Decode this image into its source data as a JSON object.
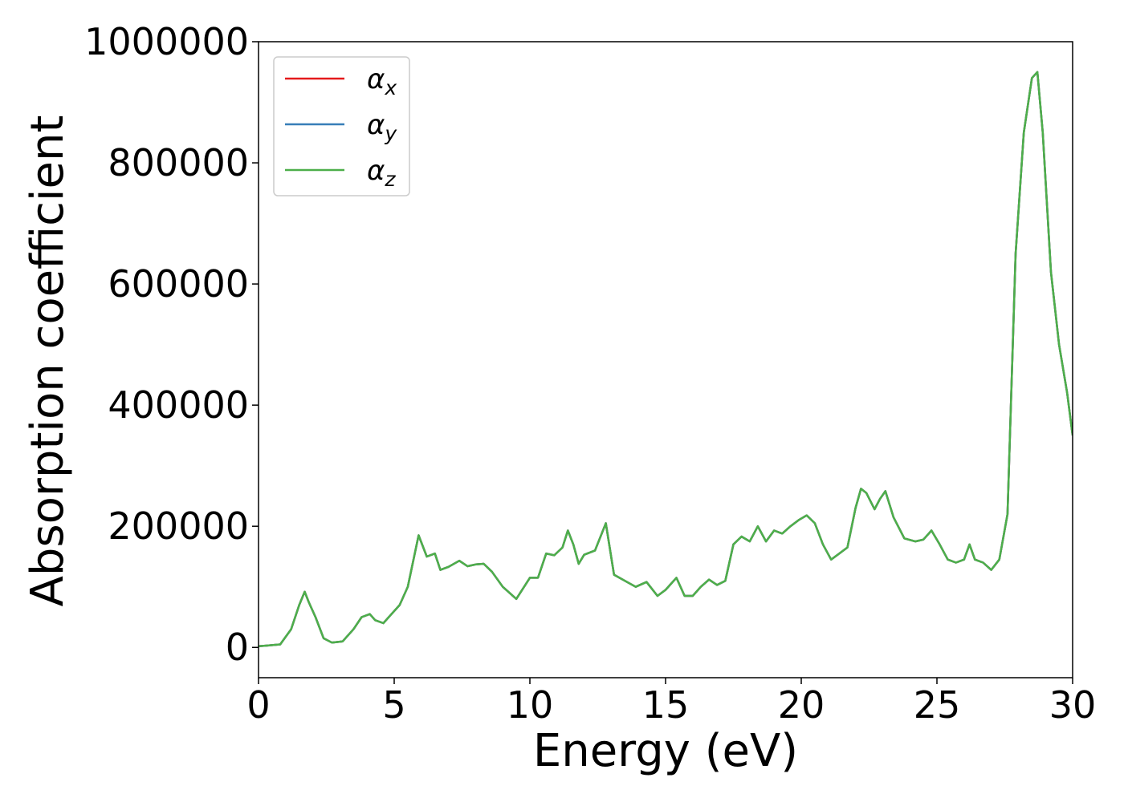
{
  "chart_data": {
    "type": "line",
    "title": "",
    "xlabel": "Energy (eV)",
    "ylabel": "Absorption coefficient",
    "xlim": [
      0,
      30
    ],
    "ylim": [
      -50000,
      1000000
    ],
    "xticks": [
      0,
      5,
      10,
      15,
      20,
      25,
      30
    ],
    "yticks": [
      0,
      200000,
      400000,
      600000,
      800000,
      1000000
    ],
    "grid": false,
    "legend_position": "top-left",
    "x": [
      0,
      0.3,
      0.8,
      1.2,
      1.5,
      1.7,
      1.85,
      2.1,
      2.4,
      2.7,
      3.1,
      3.5,
      3.8,
      4.1,
      4.3,
      4.6,
      4.9,
      5.2,
      5.5,
      5.9,
      6.2,
      6.5,
      6.7,
      7.0,
      7.4,
      7.7,
      8.0,
      8.3,
      8.6,
      9.0,
      9.5,
      10.0,
      10.3,
      10.6,
      10.9,
      11.2,
      11.4,
      11.6,
      11.8,
      12.0,
      12.4,
      12.8,
      13.1,
      13.5,
      13.9,
      14.3,
      14.7,
      15.0,
      15.4,
      15.7,
      16.0,
      16.3,
      16.6,
      16.9,
      17.2,
      17.5,
      17.8,
      18.1,
      18.4,
      18.7,
      19.0,
      19.3,
      19.6,
      19.9,
      20.2,
      20.5,
      20.8,
      21.1,
      21.4,
      21.7,
      22.0,
      22.2,
      22.4,
      22.7,
      22.9,
      23.1,
      23.4,
      23.8,
      24.2,
      24.5,
      24.8,
      25.1,
      25.4,
      25.7,
      26.0,
      26.2,
      26.4,
      26.7,
      27.0,
      27.3,
      27.6,
      27.9,
      28.2,
      28.5,
      28.7,
      28.9,
      29.2,
      29.5,
      29.8,
      30.0
    ],
    "series": [
      {
        "name": "α_x",
        "color": "#e41a1c",
        "values": [
          2000,
          3000,
          5000,
          30000,
          70000,
          92000,
          75000,
          50000,
          15000,
          8000,
          10000,
          30000,
          50000,
          55000,
          45000,
          40000,
          55000,
          70000,
          100000,
          185000,
          150000,
          155000,
          128000,
          133000,
          143000,
          134000,
          137000,
          138000,
          125000,
          100000,
          80000,
          115000,
          115000,
          155000,
          152000,
          165000,
          193000,
          170000,
          138000,
          153000,
          160000,
          205000,
          120000,
          110000,
          100000,
          108000,
          85000,
          95000,
          115000,
          85000,
          85000,
          100000,
          112000,
          103000,
          110000,
          170000,
          183000,
          175000,
          200000,
          175000,
          193000,
          188000,
          200000,
          210000,
          218000,
          205000,
          170000,
          145000,
          155000,
          165000,
          230000,
          262000,
          255000,
          228000,
          245000,
          258000,
          215000,
          180000,
          175000,
          178000,
          193000,
          170000,
          145000,
          140000,
          145000,
          170000,
          145000,
          140000,
          128000,
          145000,
          220000,
          650000,
          850000,
          940000,
          950000,
          850000,
          620000,
          500000,
          420000,
          350000
        ]
      },
      {
        "name": "α_y",
        "color": "#377eb8",
        "values": [
          2000,
          3000,
          5000,
          30000,
          70000,
          92000,
          75000,
          50000,
          15000,
          8000,
          10000,
          30000,
          50000,
          55000,
          45000,
          40000,
          55000,
          70000,
          100000,
          185000,
          150000,
          155000,
          128000,
          133000,
          143000,
          134000,
          137000,
          138000,
          125000,
          100000,
          80000,
          115000,
          115000,
          155000,
          152000,
          165000,
          193000,
          170000,
          138000,
          153000,
          160000,
          205000,
          120000,
          110000,
          100000,
          108000,
          85000,
          95000,
          115000,
          85000,
          85000,
          100000,
          112000,
          103000,
          110000,
          170000,
          183000,
          175000,
          200000,
          175000,
          193000,
          188000,
          200000,
          210000,
          218000,
          205000,
          170000,
          145000,
          155000,
          165000,
          230000,
          262000,
          255000,
          228000,
          245000,
          258000,
          215000,
          180000,
          175000,
          178000,
          193000,
          170000,
          145000,
          140000,
          145000,
          170000,
          145000,
          140000,
          128000,
          145000,
          220000,
          650000,
          850000,
          940000,
          950000,
          850000,
          620000,
          500000,
          420000,
          350000
        ]
      },
      {
        "name": "α_z",
        "color": "#4daf4a",
        "values": [
          2000,
          3000,
          5000,
          30000,
          70000,
          92000,
          75000,
          50000,
          15000,
          8000,
          10000,
          30000,
          50000,
          55000,
          45000,
          40000,
          55000,
          70000,
          100000,
          185000,
          150000,
          155000,
          128000,
          133000,
          143000,
          134000,
          137000,
          138000,
          125000,
          100000,
          80000,
          115000,
          115000,
          155000,
          152000,
          165000,
          193000,
          170000,
          138000,
          153000,
          160000,
          205000,
          120000,
          110000,
          100000,
          108000,
          85000,
          95000,
          115000,
          85000,
          85000,
          100000,
          112000,
          103000,
          110000,
          170000,
          183000,
          175000,
          200000,
          175000,
          193000,
          188000,
          200000,
          210000,
          218000,
          205000,
          170000,
          145000,
          155000,
          165000,
          230000,
          262000,
          255000,
          228000,
          245000,
          258000,
          215000,
          180000,
          175000,
          178000,
          193000,
          170000,
          145000,
          140000,
          145000,
          170000,
          145000,
          140000,
          128000,
          145000,
          220000,
          650000,
          850000,
          940000,
          950000,
          850000,
          620000,
          500000,
          420000,
          350000
        ]
      }
    ]
  }
}
